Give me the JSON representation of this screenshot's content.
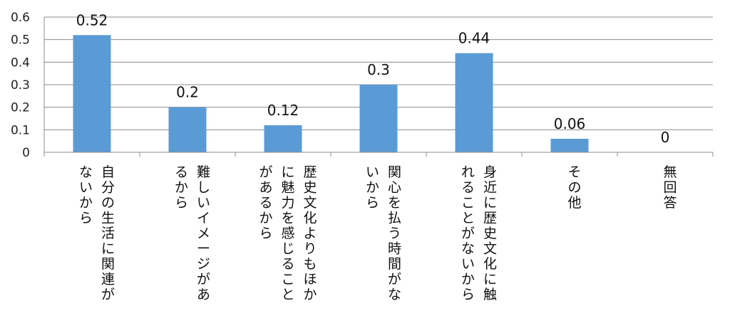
{
  "chart_data": {
    "type": "bar",
    "categories": [
      [
        "自分の生活に関連が",
        "ないから"
      ],
      [
        "難しいイメージがあ",
        "るから"
      ],
      [
        "歴史文化よりもほか",
        "に魅力を感じること",
        "があるから"
      ],
      [
        "関心を払う時間がな",
        "いから"
      ],
      [
        "身近に歴史文化に触",
        "れることがないから"
      ],
      [
        "その他"
      ],
      [
        "無回答"
      ]
    ],
    "values": [
      0.52,
      0.2,
      0.12,
      0.3,
      0.44,
      0.06,
      0
    ],
    "data_labels": [
      "0.52",
      "0.2",
      "0.12",
      "0.3",
      "0.44",
      "0.06",
      "0"
    ],
    "yticks": [
      0,
      0.1,
      0.2,
      0.3,
      0.4,
      0.5,
      0.6
    ],
    "ytick_labels": [
      "0",
      "0.1",
      "0.2",
      "0.3",
      "0.4",
      "0.5",
      "0.6"
    ],
    "ylim": [
      0,
      0.6
    ],
    "grid": true,
    "legend": "none",
    "title": "",
    "xlabel": "",
    "ylabel": "",
    "colors": {
      "bar": "#5b9bd5",
      "grid": "#8c8c8c",
      "axis": "#8c8c8c"
    }
  }
}
